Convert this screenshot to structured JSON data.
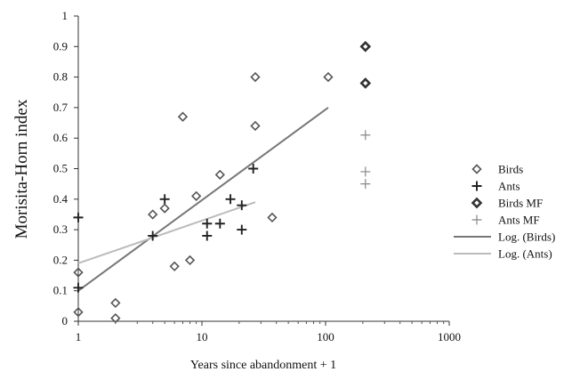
{
  "chart_data": {
    "type": "scatter",
    "xlabel": "Years since abandonment + 1",
    "ylabel": "Morisita-Horn index",
    "xscale": "log",
    "xlim": [
      1,
      1000
    ],
    "ylim": [
      0,
      1
    ],
    "x_ticks": [
      "1",
      "10",
      "100",
      "1000"
    ],
    "y_ticks": [
      "0",
      "0.1",
      "0.2",
      "0.3",
      "0.4",
      "0.5",
      "0.6",
      "0.7",
      "0.8",
      "0.9",
      "1"
    ],
    "grid": false,
    "legend_position": "right",
    "series": [
      {
        "name": "Birds",
        "marker": "diamond-open",
        "color": "#555555",
        "points": [
          [
            1,
            0.03
          ],
          [
            1,
            0.16
          ],
          [
            2,
            0.01
          ],
          [
            2,
            0.06
          ],
          [
            4,
            0.35
          ],
          [
            5,
            0.37
          ],
          [
            6,
            0.18
          ],
          [
            7,
            0.67
          ],
          [
            8,
            0.2
          ],
          [
            9,
            0.41
          ],
          [
            14,
            0.48
          ],
          [
            27,
            0.8
          ],
          [
            27,
            0.64
          ],
          [
            37,
            0.34
          ],
          [
            105,
            0.8
          ]
        ]
      },
      {
        "name": "Ants",
        "marker": "plus",
        "color": "#222222",
        "points": [
          [
            1,
            0.34
          ],
          [
            1,
            0.11
          ],
          [
            4,
            0.28
          ],
          [
            5,
            0.4
          ],
          [
            11,
            0.32
          ],
          [
            11,
            0.28
          ],
          [
            14,
            0.32
          ],
          [
            17,
            0.4
          ],
          [
            21,
            0.38
          ],
          [
            21,
            0.3
          ],
          [
            26,
            0.5
          ]
        ]
      },
      {
        "name": "Birds MF",
        "marker": "diamond-bold",
        "color": "#333333",
        "points": [
          [
            210,
            0.9
          ],
          [
            210,
            0.78
          ]
        ]
      },
      {
        "name": "Ants MF",
        "marker": "plus-light",
        "color": "#888888",
        "points": [
          [
            210,
            0.61
          ],
          [
            210,
            0.49
          ],
          [
            210,
            0.45
          ]
        ]
      }
    ],
    "trendlines": [
      {
        "name": "Log. (Birds)",
        "color": "#777777",
        "from": [
          1,
          0.1
        ],
        "to": [
          105,
          0.7
        ]
      },
      {
        "name": "Log. (Ants)",
        "color": "#bbbbbb",
        "from": [
          1,
          0.19
        ],
        "to": [
          27,
          0.39
        ]
      }
    ]
  }
}
